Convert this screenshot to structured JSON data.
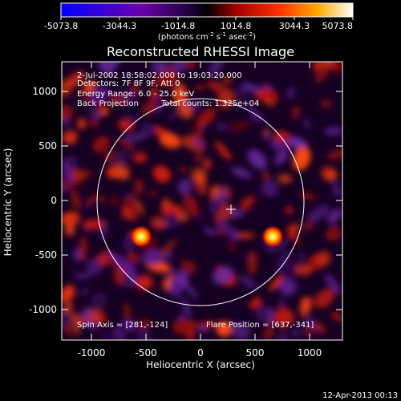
{
  "colorbar": {
    "ticks": [
      "-5073.8",
      "-3044.3",
      "-1014.8",
      "1014.8",
      "3044.3",
      "5073.8"
    ],
    "units_text": "(photons cm",
    "units_sup1": "-2",
    "units_mid": " s",
    "units_sup2": "-1",
    "units_mid2": " asec",
    "units_sup3": "-2",
    "units_end": ")"
  },
  "title": "Reconstructed RHESSI Image",
  "info": {
    "line1": "2-Jul-2002 18:58:02.000 to 19:03:20.000",
    "line2": "Detectors: 7F 8F 9F, Att 0",
    "line3": "Energy Range: 6.0 - 25.0 keV",
    "line4a": "Back Projection",
    "line4b": "Total counts: 1.325e+04",
    "spin_axis": "Spin Axis = [281,-124]",
    "flare_position": "Flare Position = [637,-341]"
  },
  "axes": {
    "xlabel": "Heliocentric X (arcsec)",
    "ylabel": "Heliocentric Y (arcsec)",
    "xticks": [
      "-1000",
      "-500",
      "0",
      "500",
      "1000"
    ],
    "yticks": [
      "1000",
      "500",
      "0",
      "-500",
      "-1000"
    ]
  },
  "timestamp": "12-Apr-2013 00:13",
  "colors": {
    "background": "#000000",
    "solar_limb": "#ffffff",
    "colormap": [
      "#0000ff",
      "#6a00a8",
      "#1a0033",
      "#000000",
      "#b00000",
      "#ff3300",
      "#ffaa00",
      "#ffff80",
      "#ffffff"
    ]
  }
}
